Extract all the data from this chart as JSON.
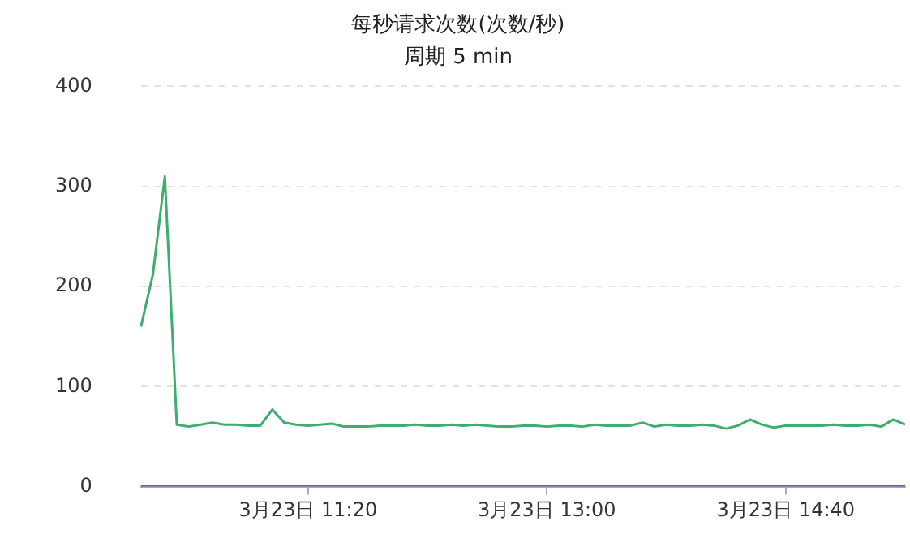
{
  "chart_data": {
    "type": "line",
    "title": "每秒请求次数(次数/秒)",
    "subtitle": "周期 5 min",
    "categories": [
      null,
      null,
      null,
      null,
      null,
      null,
      null,
      null,
      null,
      null,
      null,
      null,
      null,
      null,
      "3月23日 11:20",
      null,
      null,
      null,
      null,
      null,
      null,
      null,
      null,
      null,
      null,
      null,
      null,
      null,
      null,
      null,
      null,
      null,
      null,
      null,
      "3月23日 13:00",
      null,
      null,
      null,
      null,
      null,
      null,
      null,
      null,
      null,
      null,
      null,
      null,
      null,
      null,
      null,
      null,
      null,
      null,
      null,
      "3月23日 14:40",
      null,
      null,
      null,
      null,
      null,
      null,
      null,
      null,
      null,
      null
    ],
    "series": [
      {
        "color": "#3dae6e",
        "values": [
          160,
          212,
          310,
          62,
          60,
          62,
          64,
          62,
          62,
          61,
          61,
          77,
          64,
          62,
          61,
          62,
          63,
          60,
          60,
          60,
          61,
          61,
          61,
          62,
          61,
          61,
          62,
          61,
          62,
          61,
          60,
          60,
          61,
          61,
          60,
          61,
          61,
          60,
          62,
          61,
          61,
          61,
          64,
          60,
          62,
          61,
          61,
          62,
          61,
          58,
          61,
          67,
          62,
          59,
          61,
          61,
          61,
          61,
          62,
          61,
          61,
          62,
          60,
          67,
          62
        ]
      },
      {
        "color": "#7b52c1",
        "values": [
          0,
          0,
          0,
          0,
          0,
          0,
          0,
          0,
          0,
          0,
          0,
          0,
          0,
          0,
          0,
          0,
          0,
          0,
          0,
          0,
          0,
          0,
          0,
          0,
          0,
          0,
          0,
          0,
          0,
          0,
          0,
          0,
          0,
          0,
          0,
          0,
          0,
          0,
          0,
          0,
          0,
          0,
          0,
          0,
          0,
          0,
          0,
          0,
          0,
          0,
          0,
          0,
          0,
          0,
          0,
          0,
          0,
          0,
          0,
          0,
          0,
          0,
          0,
          0,
          0
        ]
      }
    ],
    "ylim": [
      0,
      400
    ],
    "yticks": [
      0,
      100,
      200,
      300,
      400
    ],
    "grid": "y",
    "legend": false,
    "marker": "none",
    "line_style": "solid"
  }
}
